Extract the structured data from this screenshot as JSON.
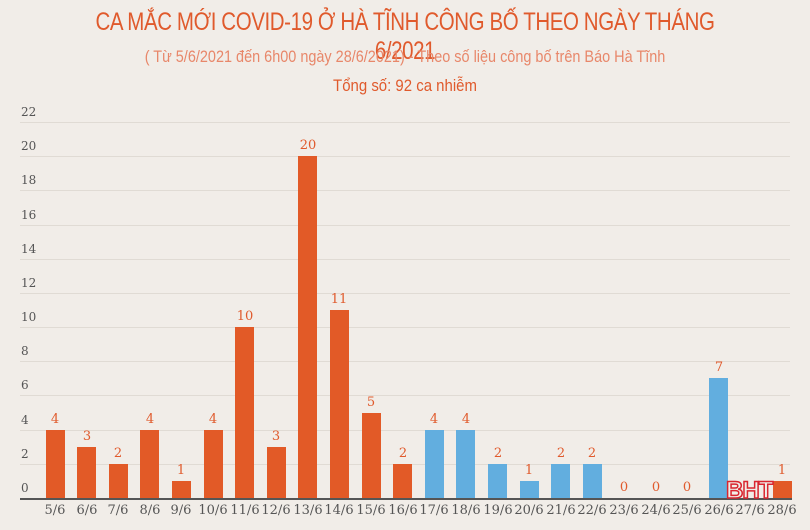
{
  "header": {
    "title": "CA MẮC MỚI COVID-19 Ở HÀ TĨNH CÔNG BỐ THEO NGÀY THÁNG 6/2021",
    "subtitle": "( Từ 5/6/2021 đến 6h00 ngày 28/6/2021) - Theo số liệu công bố trên Báo Hà Tĩnh",
    "total": "Tổng số: 92 ca nhiễm"
  },
  "logo": "BHT",
  "colors": {
    "orange": "#e25a27",
    "blue": "#62aedf",
    "label": "#e05a2c",
    "background": "#f1ede8"
  },
  "chart_data": {
    "type": "bar",
    "title": "CA MẮC MỚI COVID-19 Ở HÀ TĨNH CÔNG BỐ THEO NGÀY THÁNG 6/2021",
    "subtitle": "( Từ 5/6/2021 đến 6h00 ngày 28/6/2021) - Theo số liệu công bố trên Báo Hà Tĩnh",
    "annotation": "Tổng số: 92 ca nhiễm",
    "xlabel": "",
    "ylabel": "",
    "ylim": [
      0,
      22
    ],
    "yticks": [
      0,
      2,
      4,
      6,
      8,
      10,
      12,
      14,
      16,
      18,
      20,
      22
    ],
    "grid": true,
    "legend": null,
    "categories": [
      "5/6",
      "6/6",
      "7/6",
      "8/6",
      "9/6",
      "10/6",
      "11/6",
      "12/6",
      "13/6",
      "14/6",
      "15/6",
      "16/6",
      "17/6",
      "18/6",
      "19/6",
      "20/6",
      "21/6",
      "22/6",
      "23/6",
      "24/6",
      "25/6",
      "26/6",
      "27/6",
      "28/6"
    ],
    "values": [
      4,
      3,
      2,
      4,
      1,
      4,
      10,
      3,
      20,
      11,
      5,
      2,
      4,
      4,
      2,
      1,
      2,
      2,
      0,
      0,
      0,
      7,
      0,
      1
    ],
    "bar_colors": [
      "orange",
      "orange",
      "orange",
      "orange",
      "orange",
      "orange",
      "orange",
      "orange",
      "orange",
      "orange",
      "orange",
      "orange",
      "blue",
      "blue",
      "blue",
      "blue",
      "blue",
      "blue",
      "blue",
      "blue",
      "blue",
      "blue",
      "orange",
      "orange"
    ],
    "data_labels": [
      "4",
      "3",
      "2",
      "4",
      "1",
      "4",
      "10",
      "3",
      "20",
      "11",
      "5",
      "2",
      "4",
      "4",
      "2",
      "1",
      "2",
      "2",
      "0",
      "0",
      "0",
      "7",
      "",
      "1"
    ]
  }
}
